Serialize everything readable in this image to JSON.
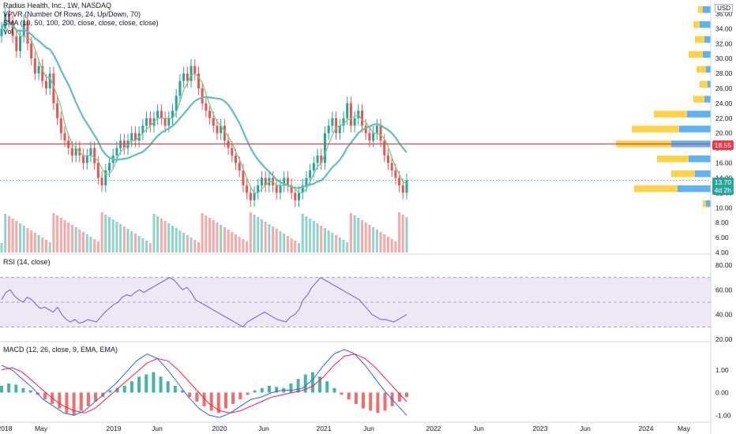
{
  "legend": {
    "title": "Radius Health, Inc., 1W, NASDAQ",
    "vpvr": "VPVR (Number Of Rows, 24, Up/Down, 70)",
    "sma": "SMA (10, 50, 100, 200, close, close, close, close)",
    "vol": "Vol"
  },
  "currency": "USD",
  "price_tag": {
    "value": "18.55",
    "color": "#f23645"
  },
  "last_tag": {
    "value": "13.70",
    "countdown": "4d 2h",
    "color": "#26a69a"
  },
  "rsi_label": "RSI (14, close)",
  "macd_label": "MACD (12, 26, close, 9, EMA, EMA)",
  "colors": {
    "up": "#26a69a",
    "down": "#ef5350",
    "sma10": "#7fc88b",
    "sma50": "#5cc0bd",
    "hline": "#e53935",
    "rsi": "#7e57c2",
    "rsi_band": "#ede7f6",
    "macd": "#2962ff",
    "signal": "#ff1744",
    "vp_up": "#42a5f5",
    "vp_down": "#ffca28"
  },
  "chart_data": [
    {
      "type": "candlestick",
      "title": "Radius Health, Inc., 1W, NASDAQ",
      "y_ticks": [
        "36.00",
        "34.00",
        "32.00",
        "30.00",
        "28.00",
        "26.00",
        "24.00",
        "22.00",
        "20.00",
        "18.00",
        "16.00",
        "14.00",
        "12.00",
        "10.00",
        "8.00",
        "6.00",
        "4.00"
      ],
      "ylim": [
        4,
        37
      ],
      "x_ticks": [
        "2018",
        "May",
        "2019",
        "Jun",
        "2020",
        "Jun",
        "2021",
        "Jun",
        "2022",
        "Jun",
        "2023",
        "Jun",
        "2024",
        "May"
      ],
      "closes": [
        34,
        36,
        35,
        33,
        31,
        33,
        35,
        32,
        30,
        28,
        29,
        27,
        26,
        28,
        24,
        22,
        20,
        19,
        18,
        17,
        18,
        17,
        16,
        17,
        18,
        16,
        14,
        13,
        15,
        16,
        17,
        18,
        19,
        18,
        19,
        20,
        19,
        20,
        21,
        22,
        21,
        22,
        23,
        22,
        21,
        22,
        23,
        25,
        27,
        28,
        27,
        29,
        28,
        26,
        24,
        23,
        22,
        21,
        20,
        21,
        19,
        18,
        17,
        16,
        15,
        13,
        12,
        11,
        12,
        13,
        14,
        13,
        14,
        13,
        12,
        13,
        14,
        13,
        12,
        11,
        12,
        13,
        14,
        15,
        16,
        17,
        16,
        20,
        21,
        22,
        20,
        21,
        22,
        24,
        21,
        22,
        23,
        21,
        20,
        19,
        20,
        21,
        19,
        17,
        16,
        15,
        14,
        13,
        12,
        13.7
      ],
      "horizontal_line": 18.55,
      "current_price": 13.7
    },
    {
      "type": "line",
      "title": "RSI (14, close)",
      "y_ticks": [
        "80.00",
        "60.00",
        "40.00",
        "20.00"
      ],
      "ylim": [
        20,
        80
      ],
      "bands": [
        30,
        50,
        70
      ],
      "values": [
        52,
        58,
        60,
        55,
        52,
        50,
        54,
        52,
        48,
        45,
        46,
        44,
        42,
        46,
        40,
        36,
        34,
        36,
        33,
        34,
        36,
        35,
        34,
        38,
        42,
        45,
        48,
        50,
        54,
        56,
        55,
        58,
        60,
        58,
        60,
        62,
        64,
        66,
        68,
        70,
        68,
        64,
        60,
        62,
        58,
        52,
        50,
        48,
        46,
        44,
        42,
        40,
        38,
        36,
        34,
        32,
        30,
        34,
        36,
        38,
        40,
        42,
        40,
        38,
        36,
        35,
        34,
        38,
        40,
        44,
        52,
        56,
        62,
        66,
        70,
        68,
        66,
        64,
        62,
        60,
        58,
        56,
        54,
        52,
        48,
        44,
        40,
        38,
        36,
        36,
        35,
        34,
        36,
        38,
        40
      ]
    },
    {
      "type": "bar+line",
      "title": "MACD (12, 26, close, 9, EMA, EMA)",
      "y_ticks": [
        "1.00",
        "0.00",
        "-1.00"
      ],
      "ylim": [
        -1.2,
        2.0
      ],
      "hist": [
        0.3,
        0.4,
        0.35,
        0.2,
        0.1,
        -0.1,
        -0.3,
        -0.5,
        -0.7,
        -0.9,
        -1.0,
        -0.8,
        -0.6,
        -0.4,
        -0.2,
        0.1,
        0.2,
        0.3,
        0.5,
        0.7,
        0.8,
        0.9,
        0.7,
        0.5,
        0.3,
        0.1,
        -0.2,
        -0.4,
        -0.6,
        -0.8,
        -0.9,
        -0.7,
        -0.5,
        -0.3,
        -0.1,
        0.1,
        0.2,
        0.3,
        0.25,
        0.2,
        0.4,
        0.6,
        0.8,
        0.9,
        0.7,
        0.5,
        0.2,
        -0.1,
        -0.3,
        -0.5,
        -0.7,
        -0.8,
        -0.9,
        -0.8,
        -0.6,
        -0.4,
        -0.2
      ],
      "macd": [
        1.2,
        1.0,
        0.6,
        0.2,
        -0.3,
        -0.6,
        -0.9,
        -1.0,
        -0.8,
        -0.4,
        0.0,
        0.4,
        0.9,
        1.4,
        1.7,
        1.5,
        1.0,
        0.4,
        -0.2,
        -0.7,
        -1.0,
        -1.1,
        -0.9,
        -0.6,
        -0.3,
        -0.2,
        0.0,
        0.1,
        0.1,
        0.2,
        0.6,
        1.2,
        1.7,
        1.9,
        1.7,
        1.2,
        0.6,
        0.0,
        -0.5,
        -1.0
      ],
      "signal": [
        1.0,
        1.1,
        0.9,
        0.5,
        0.1,
        -0.3,
        -0.6,
        -0.8,
        -0.9,
        -0.7,
        -0.3,
        0.1,
        0.5,
        0.9,
        1.3,
        1.5,
        1.4,
        1.0,
        0.5,
        0.0,
        -0.5,
        -0.8,
        -0.9,
        -0.8,
        -0.6,
        -0.4,
        -0.2,
        -0.1,
        0.0,
        0.1,
        0.3,
        0.7,
        1.2,
        1.6,
        1.7,
        1.5,
        1.1,
        0.6,
        0.1,
        -0.4
      ]
    }
  ]
}
